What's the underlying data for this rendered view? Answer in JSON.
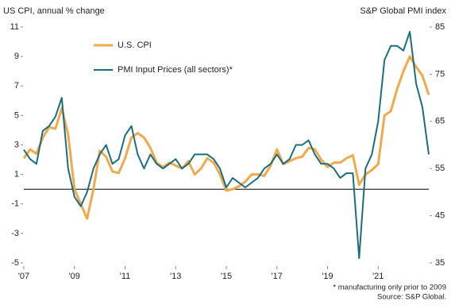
{
  "chart_data": {
    "type": "line",
    "y_title": "US CPI, annual % change",
    "y2_title": "S&P Global PMI index",
    "footnote": "* manufacturing only prior to 2009",
    "source": "Source: S&P Global.",
    "x": [
      2007,
      2007.25,
      2007.5,
      2007.75,
      2008,
      2008.25,
      2008.5,
      2008.75,
      2009,
      2009.25,
      2009.5,
      2009.75,
      2010,
      2010.25,
      2010.5,
      2010.75,
      2011,
      2011.25,
      2011.5,
      2011.75,
      2012,
      2012.25,
      2012.5,
      2012.75,
      2013,
      2013.25,
      2013.5,
      2013.75,
      2014,
      2014.25,
      2014.5,
      2014.75,
      2015,
      2015.25,
      2015.5,
      2015.75,
      2016,
      2016.25,
      2016.5,
      2016.75,
      2017,
      2017.25,
      2017.5,
      2017.75,
      2018,
      2018.25,
      2018.5,
      2018.75,
      2019,
      2019.25,
      2019.5,
      2019.75,
      2020,
      2020.25,
      2020.5,
      2020.75,
      2021,
      2021.25,
      2021.5,
      2021.75,
      2022,
      2022.25,
      2022.5,
      2022.75,
      2023
    ],
    "series": [
      {
        "name": "U.S. CPI",
        "color": "#f0a94b",
        "axis": "y",
        "values": [
          2.1,
          2.7,
          2.4,
          3.5,
          4.2,
          4.1,
          5.5,
          3.7,
          0.0,
          -1.0,
          -2.0,
          0.0,
          2.6,
          2.2,
          1.2,
          1.1,
          2.1,
          3.5,
          3.8,
          3.5,
          2.8,
          1.8,
          1.5,
          1.8,
          1.6,
          1.4,
          1.9,
          1.0,
          1.4,
          2.1,
          1.8,
          1.0,
          -0.1,
          0.0,
          0.2,
          0.5,
          1.0,
          1.0,
          0.9,
          1.6,
          2.7,
          1.7,
          1.9,
          2.1,
          2.2,
          2.8,
          2.7,
          2.0,
          1.5,
          1.8,
          1.8,
          2.1,
          2.3,
          0.3,
          1.0,
          1.3,
          1.7,
          5.0,
          5.3,
          6.8,
          8.0,
          9.0,
          8.3,
          7.7,
          6.4
        ]
      },
      {
        "name": "PMI Input Prices (all sectors)*",
        "color": "#1b6e7d",
        "axis": "y2",
        "values": [
          59,
          57,
          56,
          63,
          64,
          66,
          70,
          55,
          49,
          47,
          50,
          55,
          58,
          60,
          56,
          57,
          62,
          64,
          58,
          55,
          58,
          56,
          55,
          56,
          57,
          55,
          56,
          58,
          58,
          58,
          57,
          55,
          51,
          53,
          52,
          51,
          52,
          53,
          55,
          56,
          58,
          56,
          57,
          60,
          60,
          61,
          58,
          56,
          56,
          55,
          53,
          54,
          54,
          36,
          55,
          58,
          65,
          78,
          81,
          81,
          80,
          84,
          73,
          68,
          58
        ]
      }
    ],
    "xlim": [
      2007,
      2023
    ],
    "xticks": [
      {
        "value": 2007,
        "label": "'07"
      },
      {
        "value": 2009,
        "label": "'09"
      },
      {
        "value": 2011,
        "label": "'11"
      },
      {
        "value": 2013,
        "label": "'13"
      },
      {
        "value": 2015,
        "label": "'15"
      },
      {
        "value": 2017,
        "label": "'17"
      },
      {
        "value": 2019,
        "label": "'19"
      },
      {
        "value": 2021,
        "label": "'21"
      }
    ],
    "ylim": [
      -5,
      11
    ],
    "yticks": [
      -5,
      -3,
      -1,
      1,
      3,
      5,
      7,
      9,
      11
    ],
    "y2lim": [
      35,
      85
    ],
    "y2ticks": [
      35,
      45,
      55,
      65,
      75,
      85
    ],
    "legend": "top-left"
  }
}
